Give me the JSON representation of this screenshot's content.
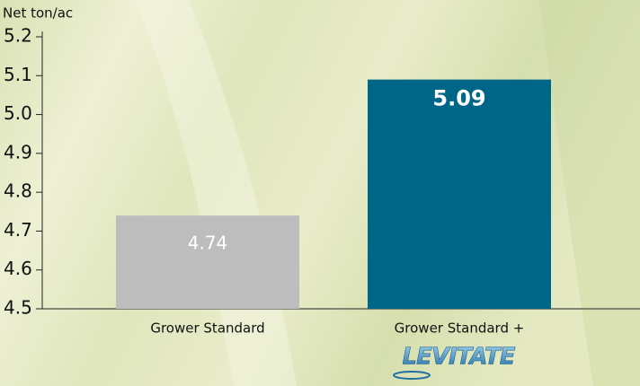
{
  "chart_data": {
    "type": "bar",
    "y_label": "Net ton/ac",
    "categories": [
      "Grower Standard",
      "Grower Standard +"
    ],
    "values": [
      4.74,
      5.09
    ],
    "colors": [
      "#bdbdbd",
      "#006687"
    ],
    "ylim": [
      4.5,
      5.2
    ],
    "yticks": [
      4.5,
      4.6,
      4.7,
      4.8,
      4.9,
      {
        "value": 5.0,
        "label": "5.0"
      },
      5.1,
      5.2
    ],
    "grid": false,
    "logo": "LEVITATE"
  }
}
